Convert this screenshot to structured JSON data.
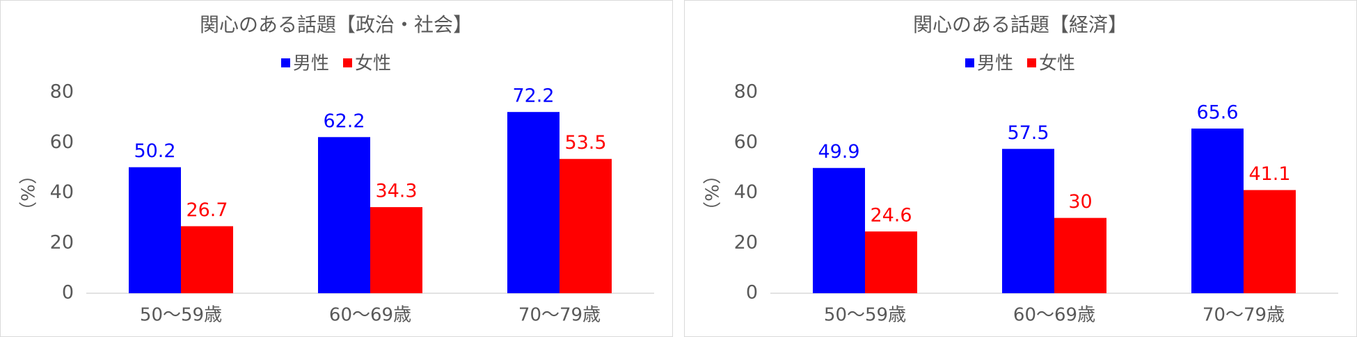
{
  "chart_data": [
    {
      "type": "bar",
      "title": "関心のある話題【政治・社会】",
      "y_label": "（%）",
      "categories": [
        "50～59歳",
        "60～69歳",
        "70～79歳"
      ],
      "series": [
        {
          "name": "男性",
          "color": "#0000ff",
          "values": [
            50.2,
            62.2,
            72.2
          ]
        },
        {
          "name": "女性",
          "color": "#ff0000",
          "values": [
            26.7,
            34.3,
            53.5
          ]
        }
      ],
      "ylim": [
        0,
        80
      ],
      "yticks": [
        0,
        20,
        40,
        60,
        80
      ],
      "grid": false,
      "legend": "top"
    },
    {
      "type": "bar",
      "title": "関心のある話題【経済】",
      "y_label": "（%）",
      "categories": [
        "50～59歳",
        "60～69歳",
        "70～79歳"
      ],
      "series": [
        {
          "name": "男性",
          "color": "#0000ff",
          "values": [
            49.9,
            57.5,
            65.6
          ]
        },
        {
          "name": "女性",
          "color": "#ff0000",
          "values": [
            24.6,
            30,
            41.1
          ]
        }
      ],
      "ylim": [
        0,
        80
      ],
      "yticks": [
        0,
        20,
        40,
        60,
        80
      ],
      "grid": false,
      "legend": "top"
    }
  ]
}
